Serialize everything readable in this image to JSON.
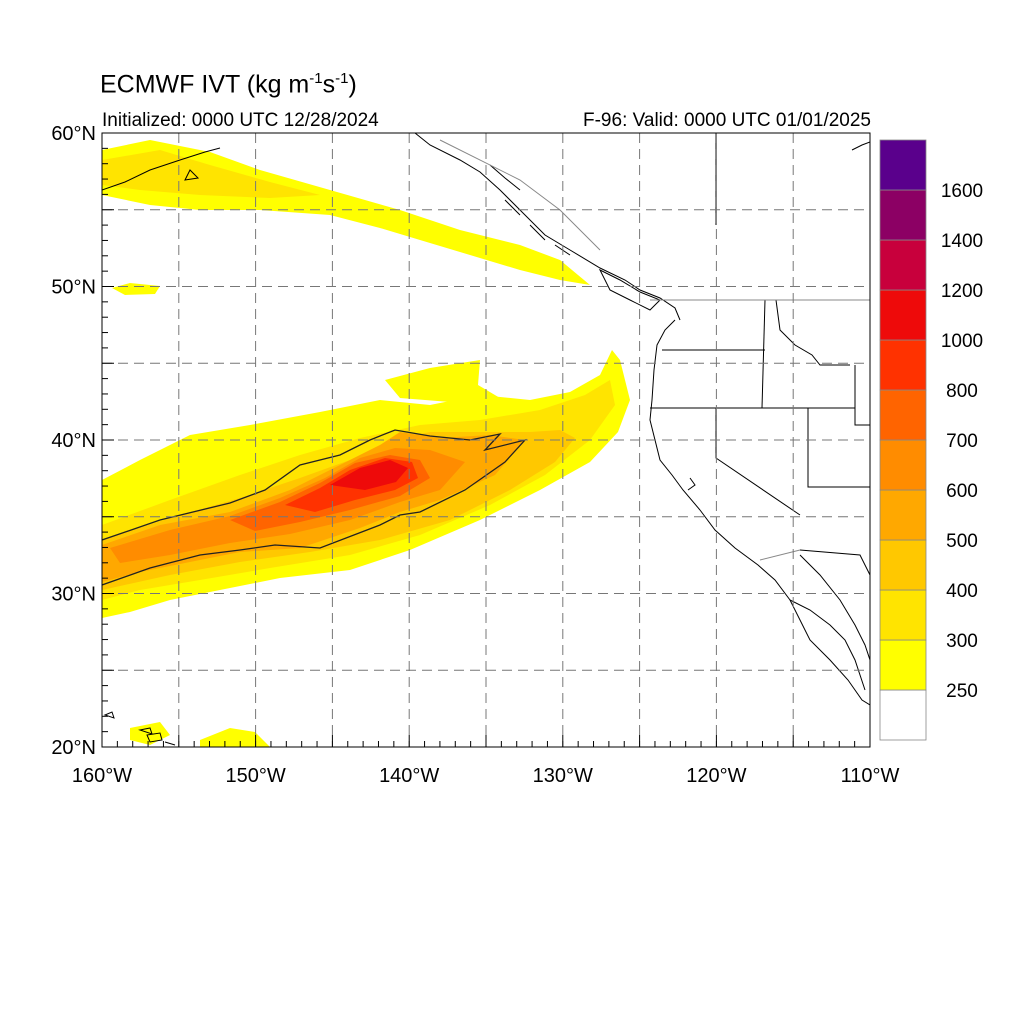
{
  "title": {
    "main": "ECMWF IVT (kg m",
    "exp1": "-1",
    "mid": "s",
    "exp2": "-1",
    "end": ")"
  },
  "initialized": "Initialized: 0000 UTC 12/28/2024",
  "valid": "F-96: Valid: 0000 UTC 01/01/2025",
  "map": {
    "lon_range": [
      -160,
      -110
    ],
    "lat_range": [
      20,
      60
    ],
    "grid_lines": "dashed",
    "grid_lon_step": 5,
    "grid_lat_step": 5,
    "lon_tick_labels": [
      {
        "lon": -160,
        "label": "160°W"
      },
      {
        "lon": -150,
        "label": "150°W"
      },
      {
        "lon": -140,
        "label": "140°W"
      },
      {
        "lon": -130,
        "label": "130°W"
      },
      {
        "lon": -120,
        "label": "120°W"
      },
      {
        "lon": -110,
        "label": "110°W"
      }
    ],
    "lat_tick_labels": [
      {
        "lat": 60,
        "label": "60°N"
      },
      {
        "lat": 50,
        "label": "50°N"
      },
      {
        "lat": 40,
        "label": "40°N"
      },
      {
        "lat": 30,
        "label": "30°N"
      },
      {
        "lat": 20,
        "label": "20°N"
      }
    ]
  },
  "colorbar": {
    "bins": [
      {
        "color": "#ffffff"
      },
      {
        "color": "#ffff00"
      },
      {
        "color": "#ffe400"
      },
      {
        "color": "#ffc800"
      },
      {
        "color": "#ffa800"
      },
      {
        "color": "#ff8c00"
      },
      {
        "color": "#ff6400"
      },
      {
        "color": "#ff3200"
      },
      {
        "color": "#ee0a0a"
      },
      {
        "color": "#c8003c"
      },
      {
        "color": "#8c0064"
      },
      {
        "color": "#5a008c"
      }
    ],
    "labels": [
      "250",
      "300",
      "400",
      "500",
      "600",
      "700",
      "800",
      "1000",
      "1200",
      "1400",
      "1600"
    ]
  },
  "chart_data": {
    "type": "heatmap",
    "variable": "IVT",
    "units": "kg m-1 s-1",
    "levels": [
      250,
      300,
      400,
      500,
      600,
      700,
      800,
      1000,
      1200,
      1400,
      1600
    ],
    "contour_line_level": 500,
    "features": [
      {
        "region": "main atmospheric river core",
        "lon": [
          -160,
          -126
        ],
        "lat": [
          29,
          45
        ],
        "peak_ivt": 1000,
        "peak_lon": -141,
        "peak_lat": 38
      },
      {
        "region": "northern Gulf of Alaska band",
        "lon": [
          -160,
          -128
        ],
        "lat": [
          51,
          59
        ],
        "peak_ivt": 400
      },
      {
        "region": "Hawaii patches",
        "lon": [
          -157,
          -149
        ],
        "lat": [
          20,
          22
        ],
        "peak_ivt": 300
      }
    ]
  }
}
